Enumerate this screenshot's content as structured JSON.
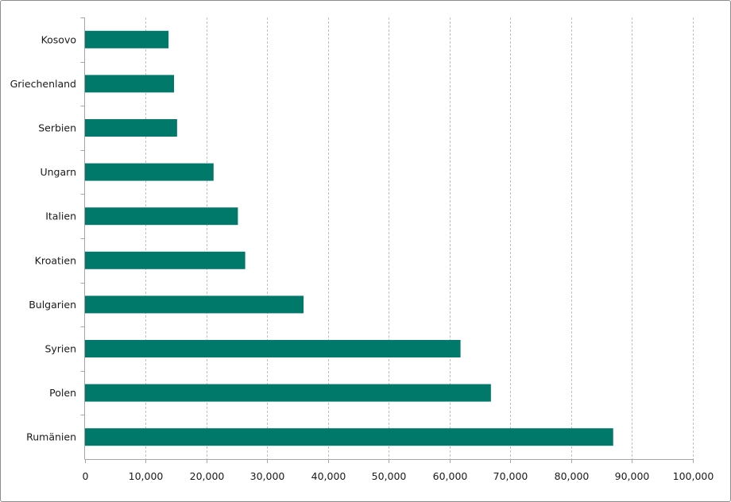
{
  "chart_data": {
    "type": "bar",
    "orientation": "horizontal",
    "title": "",
    "xlabel": "",
    "ylabel": "",
    "categories": [
      "Kosovo",
      "Griechenland",
      "Serbien",
      "Ungarn",
      "Italien",
      "Kroatien",
      "Bulgarien",
      "Syrien",
      "Polen",
      "Rumänien"
    ],
    "values": [
      13800,
      14700,
      15200,
      21200,
      25200,
      26400,
      36000,
      61800,
      66800,
      86900
    ],
    "xlim": [
      0,
      100000
    ],
    "xticks": [
      0,
      10000,
      20000,
      30000,
      40000,
      50000,
      60000,
      70000,
      80000,
      90000,
      100000
    ],
    "xtick_labels": [
      "0",
      "10,000",
      "20,000",
      "30,000",
      "40,000",
      "50,000",
      "60,000",
      "70,000",
      "80,000",
      "90,000",
      "100,000"
    ],
    "grid": "vertical dashed",
    "legend": "none",
    "colors": {
      "bar": "#00786A",
      "grid": "#bfbfbf",
      "axis": "#a6a6a6"
    }
  }
}
